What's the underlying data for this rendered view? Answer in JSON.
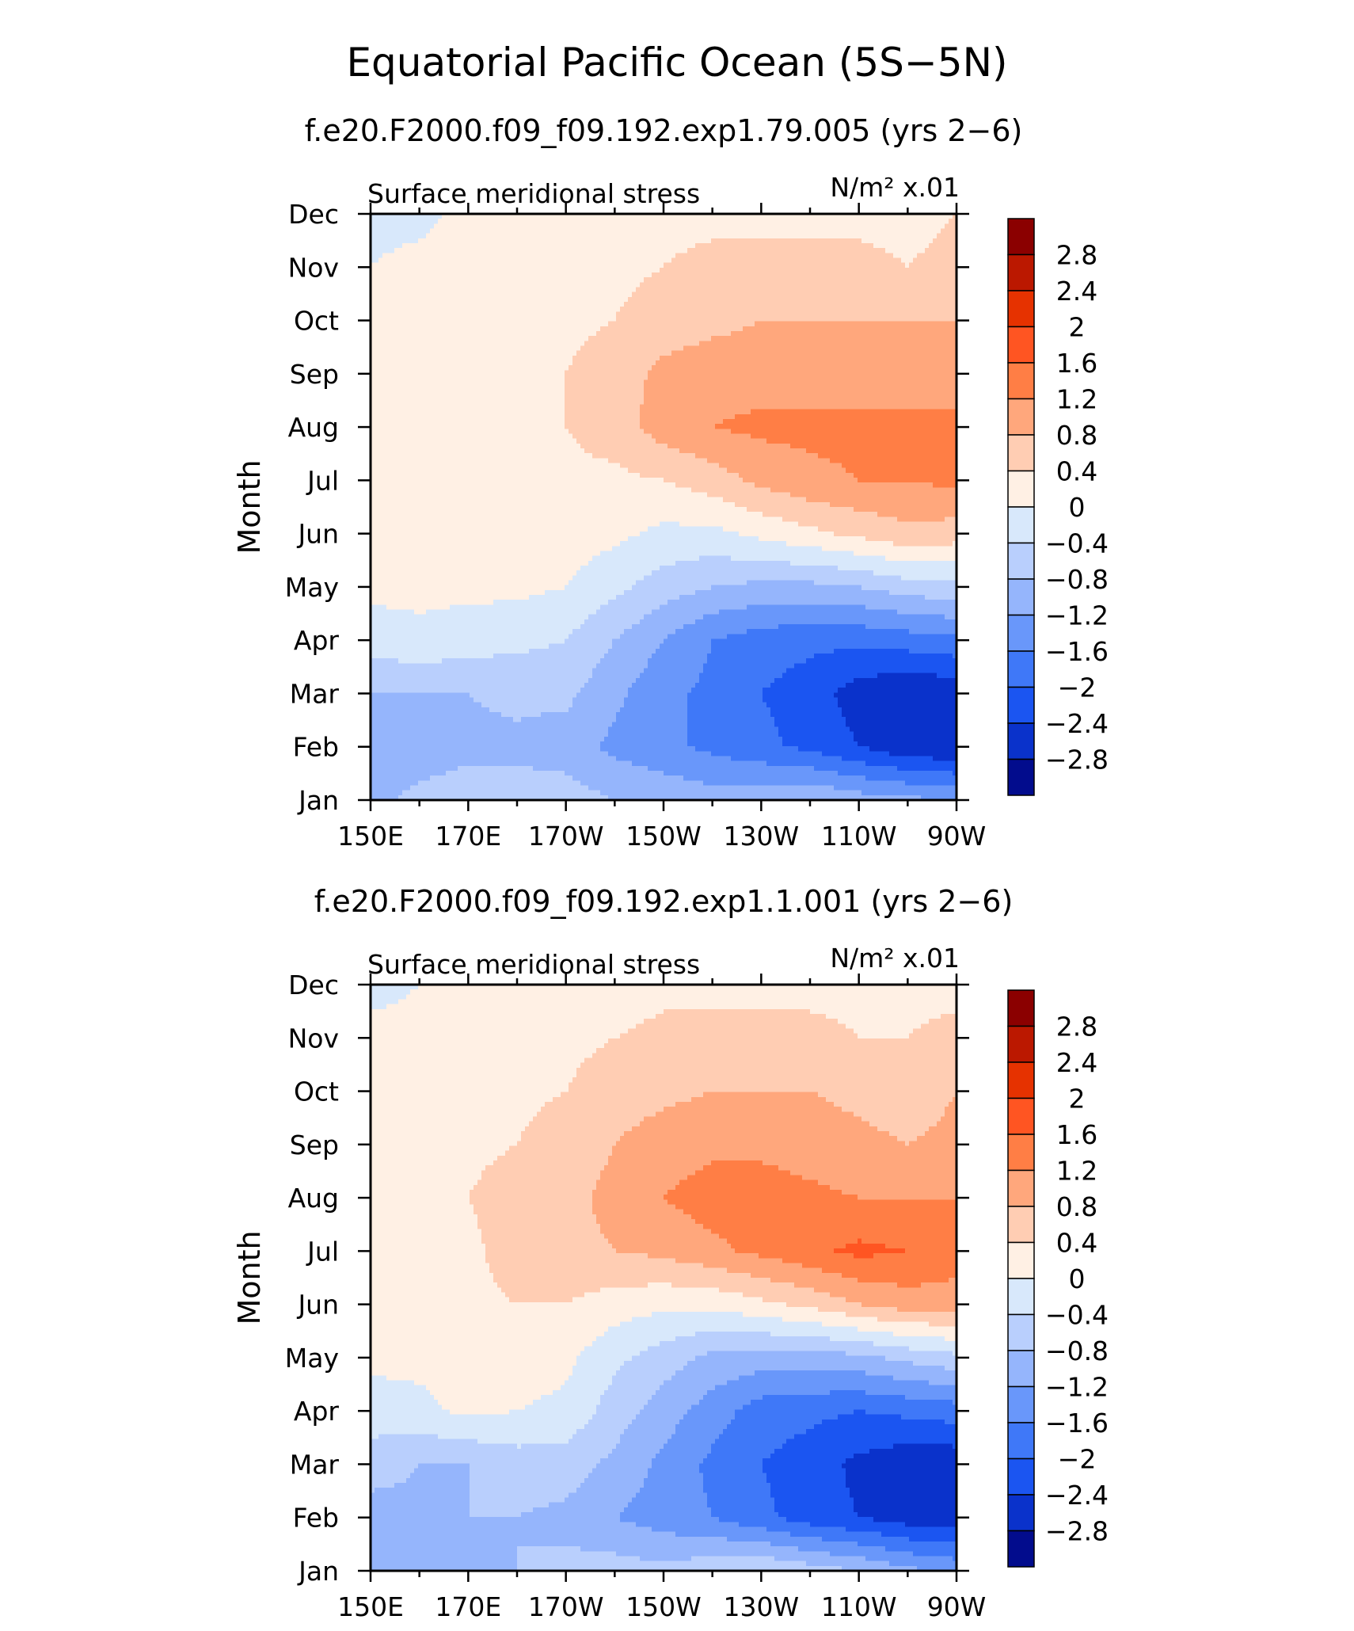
{
  "title": "Equatorial Pacific Ocean (5S−5N)",
  "colorbar": {
    "levels": [
      -3.2,
      -2.8,
      -2.4,
      -2.0,
      -1.6,
      -1.2,
      -0.8,
      -0.4,
      0,
      0.4,
      0.8,
      1.2,
      1.6,
      2.0,
      2.4,
      2.8,
      3.2
    ],
    "labels": [
      "2.8",
      "2.4",
      "2",
      "1.6",
      "1.2",
      "0.8",
      "0.4",
      "0",
      "−0.4",
      "−0.8",
      "−1.2",
      "−1.6",
      "−2",
      "−2.4",
      "−2.8"
    ],
    "colors_top_to_bottom": [
      "#8b0000",
      "#bb1800",
      "#e63200",
      "#ff5522",
      "#ff7e45",
      "#ffa77c",
      "#ffcdb3",
      "#fff0e4",
      "#d8e8fb",
      "#b9cffd",
      "#95b5fc",
      "#6997fa",
      "#3f78f8",
      "#1b55f1",
      "#0a32cb",
      "#020c8d"
    ]
  },
  "chart_data": [
    {
      "type": "heatmap",
      "subtitle": "f.e20.F2000.f09_f09.192.exp1.79.005 (yrs 2−6)",
      "left_label": "Surface meridional stress",
      "units_label": "N/m² x.01",
      "ylabel": "Month",
      "xlabel": "",
      "x_ticks": [
        "150E",
        "170E",
        "170W",
        "150W",
        "130W",
        "110W",
        "90W"
      ],
      "x_tick_values": [
        150,
        170,
        190,
        210,
        230,
        250,
        270
      ],
      "x_range": [
        150,
        270
      ],
      "y_ticks": [
        "Jan",
        "Feb",
        "Mar",
        "Apr",
        "May",
        "Jun",
        "Jul",
        "Aug",
        "Sep",
        "Oct",
        "Nov",
        "Dec"
      ],
      "y_range": [
        1,
        12
      ],
      "x": [
        150,
        160,
        170,
        180,
        190,
        200,
        210,
        220,
        230,
        240,
        250,
        260,
        270
      ],
      "y": [
        1,
        2,
        3,
        4,
        5,
        6,
        7,
        8,
        9,
        10,
        11,
        12
      ],
      "z": [
        [
          -0.9,
          -0.7,
          -0.6,
          -0.6,
          -0.6,
          -0.8,
          -0.9,
          -1.0,
          -0.9,
          -0.8,
          -1.0,
          -1.1,
          -1.2
        ],
        [
          -1.0,
          -1.0,
          -0.9,
          -0.9,
          -1.0,
          -1.3,
          -1.5,
          -1.7,
          -1.9,
          -2.1,
          -2.4,
          -2.7,
          -2.8
        ],
        [
          -0.8,
          -0.8,
          -0.8,
          -0.7,
          -0.7,
          -1.1,
          -1.5,
          -1.7,
          -2.0,
          -2.2,
          -2.6,
          -2.8,
          -2.7
        ],
        [
          -0.2,
          -0.1,
          -0.2,
          -0.3,
          -0.4,
          -0.8,
          -1.2,
          -1.6,
          -1.8,
          -1.9,
          -1.9,
          -1.8,
          -1.7
        ],
        [
          0.1,
          0.1,
          0.1,
          0.1,
          0.0,
          -0.3,
          -0.6,
          -0.8,
          -0.9,
          -0.9,
          -0.8,
          -0.6,
          -0.5
        ],
        [
          0.1,
          0.2,
          0.2,
          0.2,
          0.2,
          0.1,
          -0.1,
          -0.1,
          0.1,
          0.3,
          0.5,
          0.7,
          0.6
        ],
        [
          0.4,
          0.3,
          0.4,
          0.3,
          0.3,
          0.3,
          0.4,
          0.6,
          0.9,
          1.1,
          1.2,
          1.2,
          1.3
        ],
        [
          0.4,
          0.3,
          0.3,
          0.3,
          0.4,
          0.6,
          1.0,
          1.2,
          1.3,
          1.3,
          1.3,
          1.3,
          1.3
        ],
        [
          0.3,
          0.2,
          0.3,
          0.3,
          0.4,
          0.6,
          0.9,
          1.0,
          1.0,
          1.0,
          1.0,
          1.0,
          1.0
        ],
        [
          0.2,
          0.2,
          0.2,
          0.2,
          0.3,
          0.4,
          0.6,
          0.7,
          0.8,
          0.8,
          0.8,
          0.8,
          0.8
        ],
        [
          0.0,
          0.1,
          0.2,
          0.2,
          0.2,
          0.3,
          0.4,
          0.5,
          0.5,
          0.5,
          0.5,
          0.4,
          0.5
        ],
        [
          -0.1,
          -0.1,
          0.1,
          0.1,
          0.1,
          0.2,
          0.3,
          0.3,
          0.3,
          0.3,
          0.3,
          0.3,
          0.4
        ]
      ]
    },
    {
      "type": "heatmap",
      "subtitle": "f.e20.F2000.f09_f09.192.exp1.1.001 (yrs 2−6)",
      "left_label": "Surface meridional stress",
      "units_label": "N/m² x.01",
      "ylabel": "Month",
      "xlabel": "",
      "x_ticks": [
        "150E",
        "170E",
        "170W",
        "150W",
        "130W",
        "110W",
        "90W"
      ],
      "x_tick_values": [
        150,
        170,
        190,
        210,
        230,
        250,
        270
      ],
      "x_range": [
        150,
        270
      ],
      "y_ticks": [
        "Jan",
        "Feb",
        "Mar",
        "Apr",
        "May",
        "Jun",
        "Jul",
        "Aug",
        "Sep",
        "Oct",
        "Nov",
        "Dec"
      ],
      "y_range": [
        1,
        12
      ],
      "x": [
        150,
        160,
        170,
        180,
        190,
        200,
        210,
        220,
        230,
        240,
        250,
        260,
        270
      ],
      "y": [
        1,
        2,
        3,
        4,
        5,
        6,
        7,
        8,
        9,
        10,
        11,
        12
      ],
      "z": [
        [
          -0.9,
          -0.9,
          -0.9,
          -0.8,
          -0.7,
          -0.6,
          -0.7,
          -0.5,
          -0.4,
          -0.6,
          -0.8,
          -1.1,
          -1.3
        ],
        [
          -1.0,
          -0.9,
          -0.8,
          -0.8,
          -0.9,
          -1.2,
          -1.4,
          -1.6,
          -1.9,
          -2.2,
          -2.4,
          -2.6,
          -2.7
        ],
        [
          -0.6,
          -0.8,
          -0.8,
          -0.6,
          -0.6,
          -0.9,
          -1.3,
          -1.7,
          -2.0,
          -2.2,
          -2.5,
          -2.7,
          -2.7
        ],
        [
          -0.2,
          -0.1,
          0.1,
          0.0,
          -0.1,
          -0.6,
          -1.0,
          -1.4,
          -1.8,
          -1.9,
          -2.0,
          -1.9,
          -1.8
        ],
        [
          0.1,
          0.1,
          0.1,
          0.2,
          0.1,
          -0.3,
          -0.6,
          -0.9,
          -1.0,
          -1.0,
          -0.9,
          -0.7,
          -0.5
        ],
        [
          0.3,
          0.2,
          0.3,
          0.4,
          0.4,
          0.2,
          0.1,
          0.1,
          0.3,
          0.5,
          0.8,
          1.0,
          1.0
        ],
        [
          0.4,
          0.3,
          0.3,
          0.6,
          0.7,
          0.8,
          0.9,
          1.1,
          1.3,
          1.5,
          1.7,
          1.6,
          1.4
        ],
        [
          0.4,
          0.3,
          0.4,
          0.6,
          0.7,
          0.9,
          1.2,
          1.4,
          1.4,
          1.3,
          1.2,
          1.2,
          1.2
        ],
        [
          0.3,
          0.3,
          0.3,
          0.4,
          0.6,
          0.8,
          1.0,
          1.1,
          1.1,
          1.0,
          0.9,
          0.8,
          0.9
        ],
        [
          0.2,
          0.2,
          0.2,
          0.3,
          0.4,
          0.6,
          0.7,
          0.8,
          0.8,
          0.8,
          0.7,
          0.6,
          0.8
        ],
        [
          0.1,
          0.1,
          0.2,
          0.2,
          0.3,
          0.4,
          0.5,
          0.5,
          0.5,
          0.5,
          0.4,
          0.4,
          0.5
        ],
        [
          -0.1,
          0.0,
          0.0,
          0.1,
          0.2,
          0.2,
          0.3,
          0.3,
          0.3,
          0.3,
          0.3,
          0.3,
          0.3
        ]
      ]
    }
  ]
}
